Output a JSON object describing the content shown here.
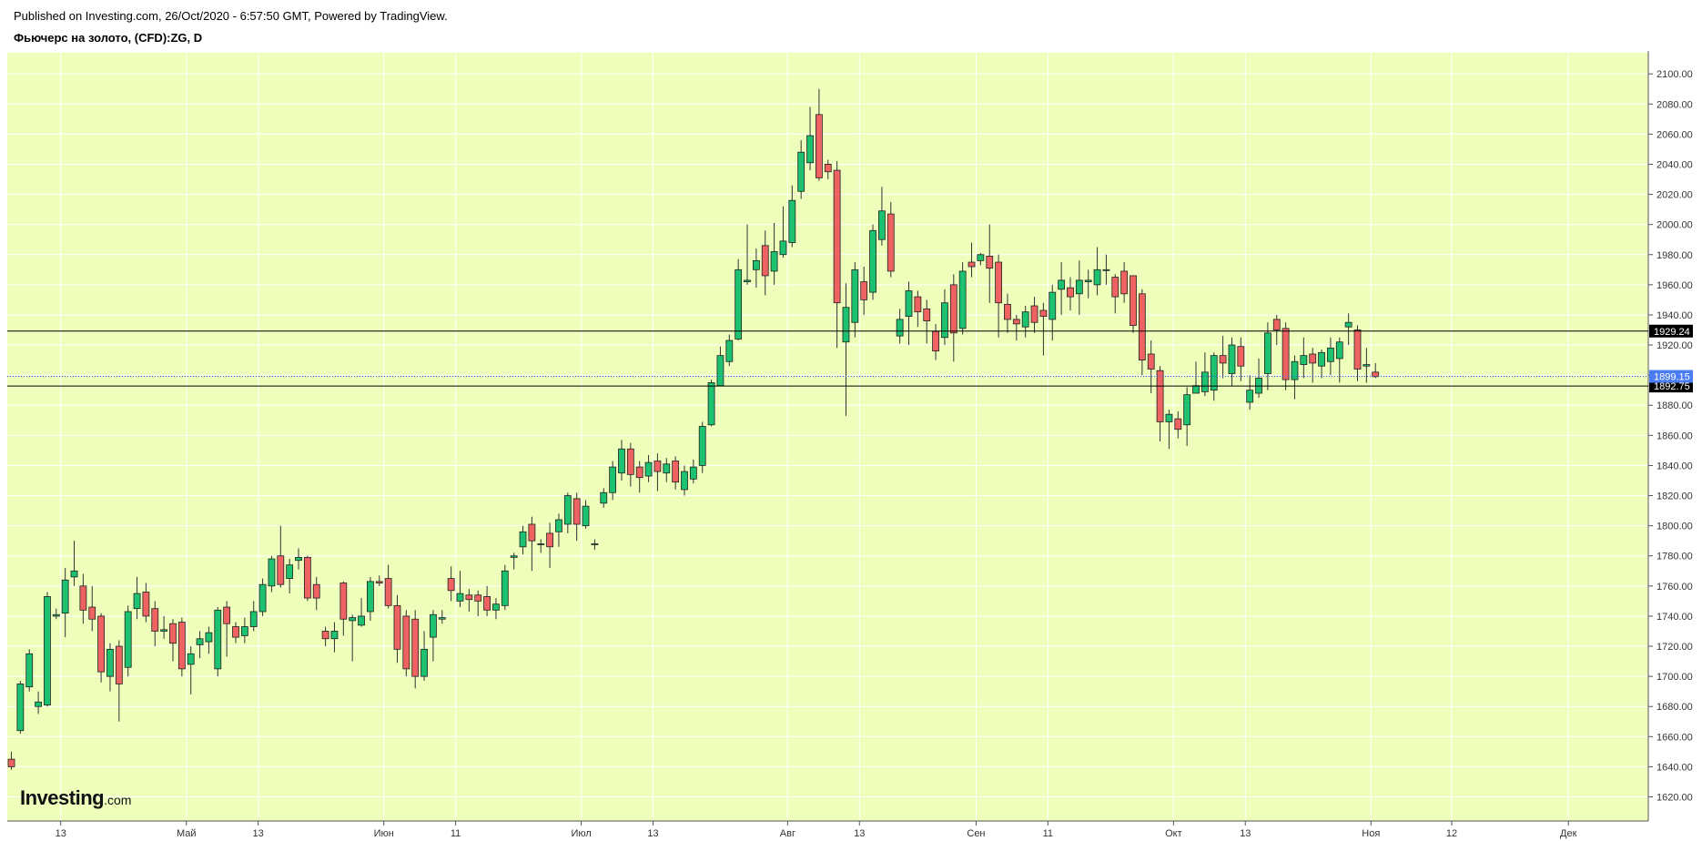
{
  "header": {
    "published": "Published on Investing.com, 26/Oct/2020 - 6:57:50 GMT, Powered by TradingView.",
    "symbol": "Фьючерс на золото, (CFD):ZG, D"
  },
  "logo": {
    "brand": "Investing",
    "domain": ".com"
  },
  "colors": {
    "plot_bg": "#eeffbb",
    "up": "#1cc26f",
    "down": "#ef6262",
    "wick": "#333333",
    "grid": "#ffffff",
    "hline": "#000000",
    "current": "#2962ff"
  },
  "chart_data": {
    "type": "candlestick",
    "title": "Фьючерс на золото, (CFD):ZG, D",
    "y_axis": {
      "range": [
        1604,
        2114
      ],
      "ticks": [
        "1620.00",
        "1640.00",
        "1660.00",
        "1680.00",
        "1700.00",
        "1720.00",
        "1740.00",
        "1760.00",
        "1780.00",
        "1800.00",
        "1820.00",
        "1840.00",
        "1860.00",
        "1880.00",
        "1900.00",
        "1920.00",
        "1940.00",
        "1960.00",
        "1980.00",
        "2000.00",
        "2020.00",
        "2040.00",
        "2060.00",
        "2080.00",
        "2100.00"
      ],
      "position": "right"
    },
    "x_axis": {
      "ticks": [
        {
          "label": "13",
          "bar": 5.5
        },
        {
          "label": "Май",
          "bar": 19.5
        },
        {
          "label": "13",
          "bar": 27.5
        },
        {
          "label": "Июн",
          "bar": 41.5
        },
        {
          "label": "11",
          "bar": 49.5
        },
        {
          "label": "Июл",
          "bar": 63.5
        },
        {
          "label": "13",
          "bar": 71.5
        },
        {
          "label": "Авг",
          "bar": 86.5
        },
        {
          "label": "13",
          "bar": 94.5
        },
        {
          "label": "Сен",
          "bar": 107.5
        },
        {
          "label": "11",
          "bar": 115.5
        },
        {
          "label": "Окт",
          "bar": 129.5
        },
        {
          "label": "13",
          "bar": 137.5
        },
        {
          "label": "Ноя",
          "bar": 151.5
        },
        {
          "label": "12",
          "bar": 160.5
        },
        {
          "label": "Дек",
          "bar": 173.5
        }
      ],
      "total_bars": 176
    },
    "horizontal_lines": [
      {
        "value": 1929.24,
        "label": "1929.24",
        "style": "solid"
      },
      {
        "value": 1892.75,
        "label": "1892.75",
        "style": "solid"
      },
      {
        "value": 1899.15,
        "label": "1899.15",
        "style": "dotted-current"
      }
    ],
    "candles": [
      [
        1645,
        1640,
        1650,
        1638
      ],
      [
        1664,
        1695,
        1697,
        1662
      ],
      [
        1693,
        1715,
        1718,
        1690
      ],
      [
        1680,
        1683,
        1690,
        1675
      ],
      [
        1681,
        1753,
        1756,
        1680
      ],
      [
        1740,
        1741,
        1745,
        1738
      ],
      [
        1742,
        1764,
        1772,
        1726
      ],
      [
        1766,
        1770,
        1790,
        1760
      ],
      [
        1760,
        1744,
        1768,
        1735
      ],
      [
        1746,
        1738,
        1760,
        1730
      ],
      [
        1740,
        1703,
        1742,
        1696
      ],
      [
        1700,
        1718,
        1722,
        1690
      ],
      [
        1720,
        1695,
        1724,
        1670
      ],
      [
        1706,
        1743,
        1747,
        1700
      ],
      [
        1745,
        1755,
        1766,
        1738
      ],
      [
        1756,
        1740,
        1762,
        1736
      ],
      [
        1745,
        1730,
        1750,
        1720
      ],
      [
        1730,
        1731,
        1740,
        1725
      ],
      [
        1735,
        1722,
        1738,
        1710
      ],
      [
        1736,
        1705,
        1739,
        1700
      ],
      [
        1708,
        1715,
        1720,
        1688
      ],
      [
        1721,
        1725,
        1730,
        1712
      ],
      [
        1723,
        1729,
        1733,
        1715
      ],
      [
        1705,
        1744,
        1746,
        1700
      ],
      [
        1746,
        1735,
        1750,
        1713
      ],
      [
        1733,
        1726,
        1736,
        1722
      ],
      [
        1727,
        1733,
        1739,
        1722
      ],
      [
        1733,
        1743,
        1750,
        1730
      ],
      [
        1743,
        1761,
        1765,
        1740
      ],
      [
        1760,
        1778,
        1780,
        1756
      ],
      [
        1780,
        1761,
        1800,
        1759
      ],
      [
        1765,
        1774,
        1778,
        1755
      ],
      [
        1777,
        1779,
        1785,
        1771
      ],
      [
        1779,
        1752,
        1780,
        1750
      ],
      [
        1761,
        1752,
        1766,
        1744
      ],
      [
        1730,
        1725,
        1733,
        1720
      ],
      [
        1725,
        1730,
        1736,
        1716
      ],
      [
        1762,
        1738,
        1763,
        1727
      ],
      [
        1737,
        1739,
        1741,
        1710
      ],
      [
        1734,
        1740,
        1752,
        1733
      ],
      [
        1743,
        1763,
        1766,
        1737
      ],
      [
        1763,
        1762,
        1767,
        1760
      ],
      [
        1765,
        1747,
        1774,
        1745
      ],
      [
        1747,
        1718,
        1754,
        1709
      ],
      [
        1740,
        1705,
        1744,
        1700
      ],
      [
        1738,
        1700,
        1744,
        1692
      ],
      [
        1700,
        1718,
        1730,
        1697
      ],
      [
        1726,
        1741,
        1744,
        1710
      ],
      [
        1738,
        1739,
        1744,
        1735
      ],
      [
        1765,
        1757,
        1773,
        1750
      ],
      [
        1750,
        1755,
        1770,
        1746
      ],
      [
        1754,
        1751,
        1758,
        1743
      ],
      [
        1754,
        1750,
        1757,
        1740
      ],
      [
        1753,
        1744,
        1760,
        1740
      ],
      [
        1744,
        1748,
        1752,
        1738
      ],
      [
        1747,
        1770,
        1774,
        1744
      ],
      [
        1779,
        1780,
        1782,
        1771
      ],
      [
        1786,
        1796,
        1800,
        1781
      ],
      [
        1801,
        1790,
        1806,
        1770
      ],
      [
        1788,
        1788,
        1791,
        1782
      ],
      [
        1795,
        1786,
        1802,
        1772
      ],
      [
        1796,
        1804,
        1808,
        1786
      ],
      [
        1801,
        1820,
        1822,
        1795
      ],
      [
        1818,
        1801,
        1822,
        1790
      ],
      [
        1800,
        1813,
        1817,
        1798
      ],
      [
        1788,
        1788,
        1791,
        1784
      ],
      [
        1815,
        1822,
        1825,
        1812
      ],
      [
        1822,
        1839,
        1843,
        1817
      ],
      [
        1835,
        1851,
        1857,
        1830
      ],
      [
        1851,
        1834,
        1855,
        1826
      ],
      [
        1839,
        1832,
        1843,
        1822
      ],
      [
        1833,
        1842,
        1847,
        1829
      ],
      [
        1843,
        1836,
        1848,
        1823
      ],
      [
        1835,
        1841,
        1845,
        1829
      ],
      [
        1843,
        1829,
        1846,
        1824
      ],
      [
        1824,
        1836,
        1840,
        1820
      ],
      [
        1831,
        1839,
        1844,
        1828
      ],
      [
        1840,
        1866,
        1869,
        1835
      ],
      [
        1867,
        1895,
        1897,
        1866
      ],
      [
        1893,
        1913,
        1919,
        1893
      ],
      [
        1909,
        1923,
        1927,
        1906
      ],
      [
        1924,
        1970,
        1977,
        1923
      ],
      [
        1962,
        1963,
        2000,
        1960
      ],
      [
        1970,
        1976,
        1984,
        1958
      ],
      [
        1986,
        1966,
        1996,
        1953
      ],
      [
        1969,
        1982,
        2001,
        1960
      ],
      [
        1980,
        1989,
        2012,
        1978
      ],
      [
        1988,
        2016,
        2026,
        1985
      ],
      [
        2022,
        2048,
        2056,
        2017
      ],
      [
        2041,
        2059,
        2078,
        2036
      ],
      [
        2073,
        2031,
        2090,
        2029
      ],
      [
        2040,
        2035,
        2043,
        2030
      ],
      [
        2036,
        1948,
        2042,
        1918
      ],
      [
        1922,
        1945,
        1961,
        1873
      ],
      [
        1935,
        1970,
        1975,
        1925
      ],
      [
        1962,
        1950,
        1972,
        1940
      ],
      [
        1955,
        1996,
        2000,
        1950
      ],
      [
        1990,
        2009,
        2025,
        1986
      ],
      [
        2007,
        1969,
        2015,
        1965
      ],
      [
        1926,
        1937,
        1944,
        1921
      ],
      [
        1939,
        1956,
        1962,
        1920
      ],
      [
        1952,
        1942,
        1956,
        1932
      ],
      [
        1944,
        1936,
        1950,
        1921
      ],
      [
        1929,
        1916,
        1934,
        1910
      ],
      [
        1925,
        1948,
        1957,
        1920
      ],
      [
        1960,
        1928,
        1967,
        1909
      ],
      [
        1931,
        1969,
        1975,
        1927
      ],
      [
        1975,
        1972,
        1988,
        1965
      ],
      [
        1976,
        1980,
        1981,
        1973
      ],
      [
        1979,
        1971,
        2000,
        1948
      ],
      [
        1975,
        1948,
        1980,
        1925
      ],
      [
        1947,
        1937,
        1954,
        1928
      ],
      [
        1937,
        1934,
        1940,
        1923
      ],
      [
        1932,
        1942,
        1946,
        1925
      ],
      [
        1946,
        1935,
        1952,
        1928
      ],
      [
        1943,
        1939,
        1948,
        1913
      ],
      [
        1937,
        1955,
        1960,
        1923
      ],
      [
        1957,
        1963,
        1975,
        1940
      ],
      [
        1958,
        1952,
        1965,
        1943
      ],
      [
        1954,
        1963,
        1976,
        1940
      ],
      [
        1962,
        1963,
        1970,
        1951
      ],
      [
        1960,
        1970,
        1985,
        1953
      ],
      [
        1970,
        1970,
        1980,
        1960
      ],
      [
        1965,
        1952,
        1967,
        1941
      ],
      [
        1969,
        1954,
        1975,
        1948
      ],
      [
        1966,
        1933,
        1965,
        1928
      ],
      [
        1954,
        1910,
        1957,
        1900
      ],
      [
        1914,
        1904,
        1923,
        1888
      ],
      [
        1903,
        1869,
        1906,
        1856
      ],
      [
        1869,
        1874,
        1877,
        1851
      ],
      [
        1871,
        1864,
        1876,
        1858
      ],
      [
        1867,
        1887,
        1892,
        1853
      ],
      [
        1888,
        1893,
        1909,
        1889
      ],
      [
        1889,
        1902,
        1915,
        1886
      ],
      [
        1890,
        1913,
        1915,
        1883
      ],
      [
        1913,
        1908,
        1926,
        1898
      ],
      [
        1901,
        1920,
        1925,
        1893
      ],
      [
        1919,
        1906,
        1925,
        1896
      ],
      [
        1882,
        1890,
        1900,
        1877
      ],
      [
        1888,
        1898,
        1911,
        1885
      ],
      [
        1901,
        1928,
        1935,
        1890
      ],
      [
        1937,
        1930,
        1940,
        1920
      ],
      [
        1931,
        1897,
        1935,
        1890
      ],
      [
        1897,
        1909,
        1913,
        1884
      ],
      [
        1907,
        1913,
        1925,
        1898
      ],
      [
        1914,
        1908,
        1918,
        1895
      ],
      [
        1906,
        1915,
        1917,
        1898
      ],
      [
        1909,
        1918,
        1925,
        1900
      ],
      [
        1911,
        1922,
        1925,
        1895
      ],
      [
        1932,
        1935,
        1941,
        1920
      ],
      [
        1930,
        1904,
        1933,
        1896
      ],
      [
        1906,
        1907,
        1918,
        1895
      ],
      [
        1902,
        1899,
        1908,
        1898
      ]
    ]
  }
}
